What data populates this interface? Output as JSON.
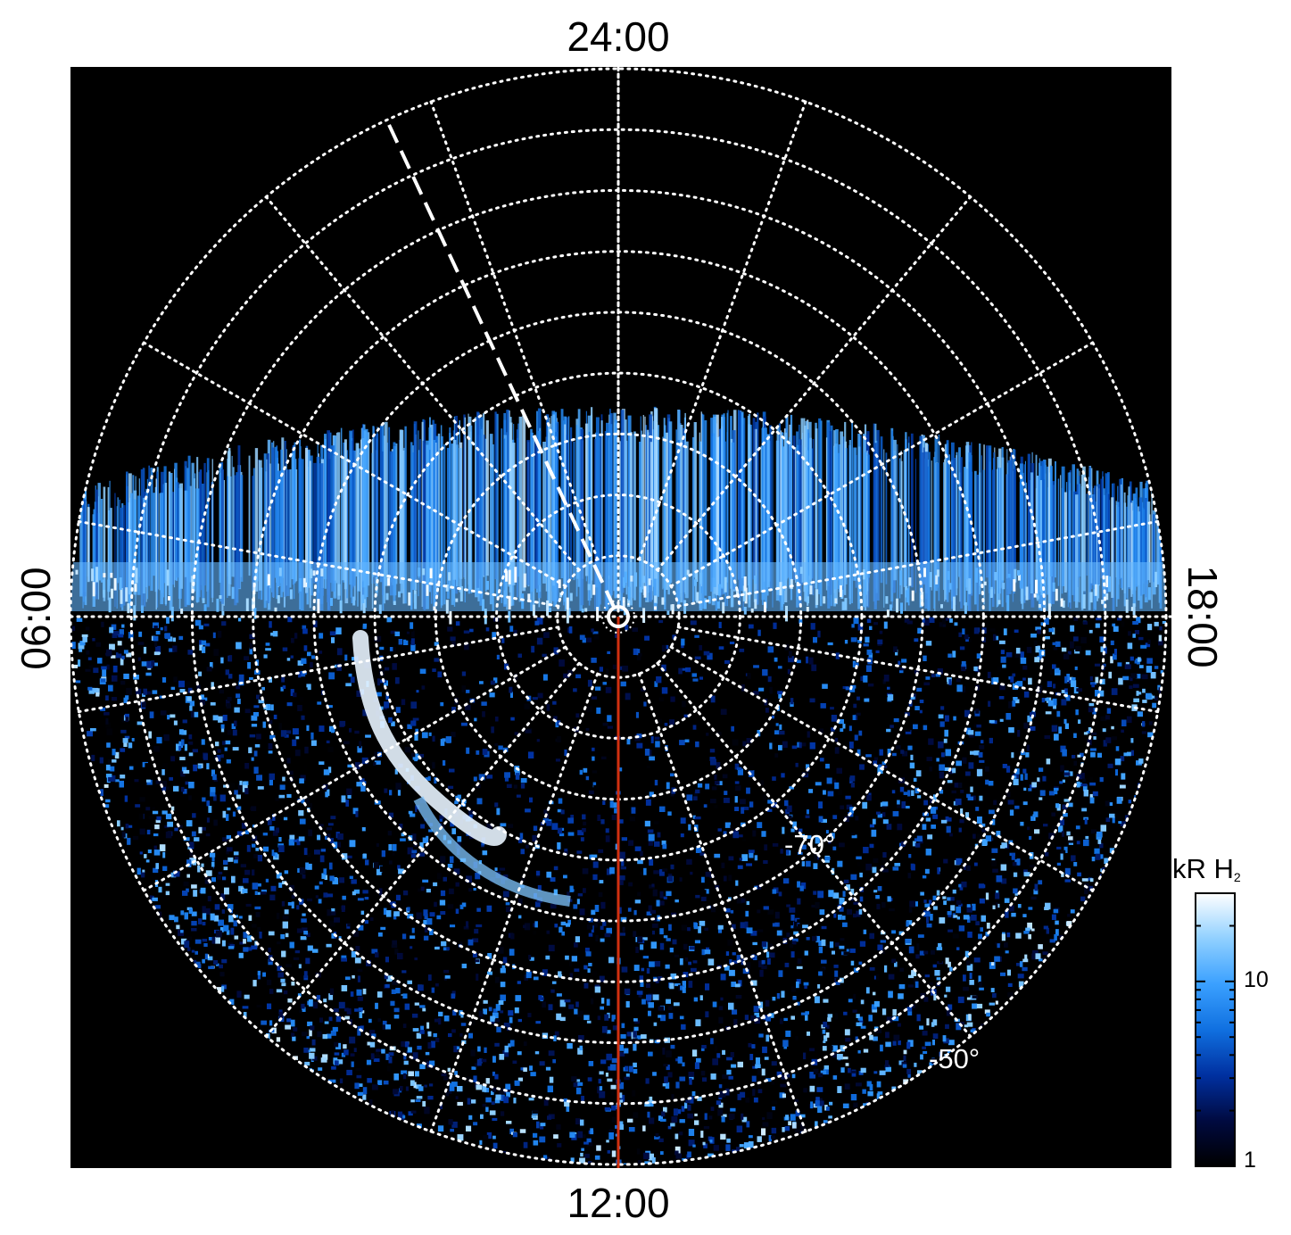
{
  "chart_data": {
    "type": "heatmap",
    "projection": "polar",
    "local_time_labels": {
      "top": "24:00",
      "bottom": "12:00",
      "left": "06:00",
      "right": "18:00"
    },
    "latitude_labels": [
      "-70°",
      "-50°"
    ],
    "latitude_label_values": [
      -70,
      -50
    ],
    "latitude_grid_deg": [
      -85,
      -80,
      -75,
      -70,
      -65,
      -60,
      -55,
      -50,
      -45
    ],
    "longitude_grid_step_deg": 20,
    "colorbar": {
      "title": "kR H",
      "title_sub": "2",
      "scale": "log",
      "range": [
        1,
        30
      ],
      "tick_labels": [
        "10",
        "1"
      ],
      "tick_values": [
        10,
        1
      ],
      "colors": [
        "#000000",
        "#000a40",
        "#0030a0",
        "#1070e0",
        "#3aa0ff",
        "#90d0ff",
        "#ffffff"
      ]
    },
    "features": {
      "main_oval_lt_hours": [
        6,
        18
      ],
      "main_oval_latitude_deg": -78,
      "dashed_meridian_local_time": "01:40",
      "red_meridian_local_time": "12:00",
      "grid": "dotted white",
      "background": "#000000"
    }
  }
}
